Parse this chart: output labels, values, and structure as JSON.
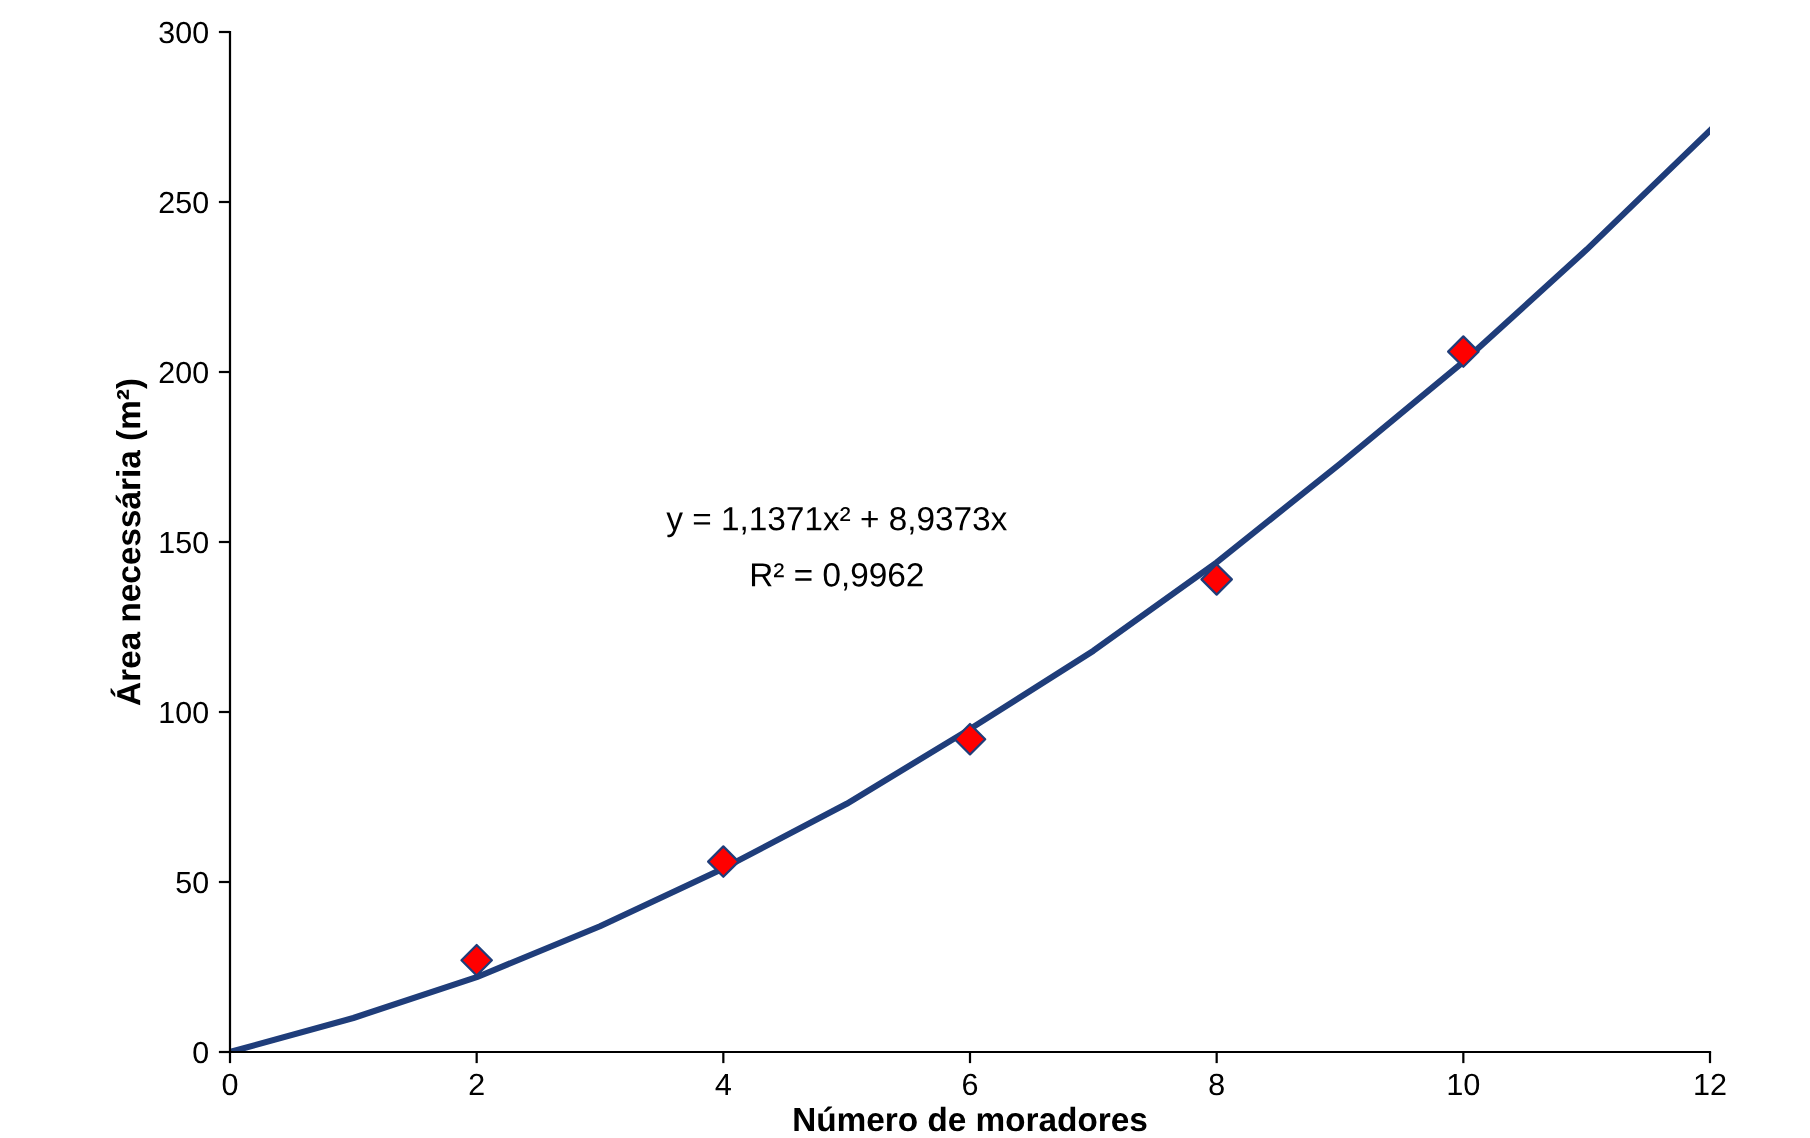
{
  "chart_data": {
    "type": "scatter",
    "xlabel": "Número de moradores",
    "ylabel": "Área necessária (m²)",
    "xlim": [
      0,
      12
    ],
    "xticks": [
      0,
      2,
      4,
      6,
      8,
      10,
      12
    ],
    "ylim": [
      0,
      300
    ],
    "yticks": [
      0,
      50,
      100,
      150,
      200,
      250,
      300
    ],
    "grid": false,
    "legend": false,
    "annotations": [
      "y = 1,1371x² + 8,9373x",
      "R² = 0,9962"
    ],
    "series": [
      {
        "type": "line",
        "color": "#1f3d7a",
        "marker": "none",
        "line_style": "solid",
        "x": [
          0,
          1,
          2,
          3,
          4,
          5,
          6,
          7,
          8,
          9,
          10,
          11,
          12
        ],
        "values": [
          0,
          10,
          22,
          37,
          54,
          73,
          95,
          118,
          144,
          173,
          203,
          236,
          271
        ]
      },
      {
        "color": "#ff0000",
        "marker": "diamond",
        "x": [
          2,
          4,
          6,
          8,
          10
        ],
        "values": [
          27,
          56,
          92,
          139,
          206
        ]
      }
    ]
  }
}
